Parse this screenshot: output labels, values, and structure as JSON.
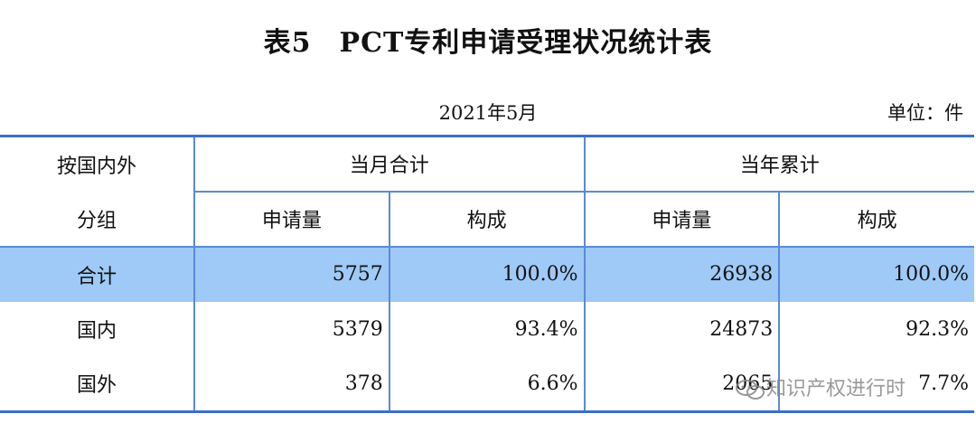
{
  "title": "表5　PCT专利申请受理状况统计表",
  "date": "2021年5月",
  "unit_label": "单位：件",
  "header": {
    "group_col": [
      "按国内外",
      "分组"
    ],
    "month_total": "当月合计",
    "year_total": "当年累计",
    "applications": "申请量",
    "composition": "构成"
  },
  "rows": [
    {
      "label": "合计",
      "month_apps": "5757",
      "month_pct": "100.0%",
      "year_apps": "26938",
      "year_pct": "100.0%"
    },
    {
      "label": "国内",
      "month_apps": "5379",
      "month_pct": "93.4%",
      "year_apps": "24873",
      "year_pct": "92.3%"
    },
    {
      "label": "国外",
      "month_apps": "378",
      "month_pct": "6.6%",
      "year_apps": "2065",
      "year_pct": "7.7%"
    }
  ],
  "watermark": "知识产权进行时",
  "highlight_color": "#9fc9f7",
  "rule_color": "#3b6fc4"
}
